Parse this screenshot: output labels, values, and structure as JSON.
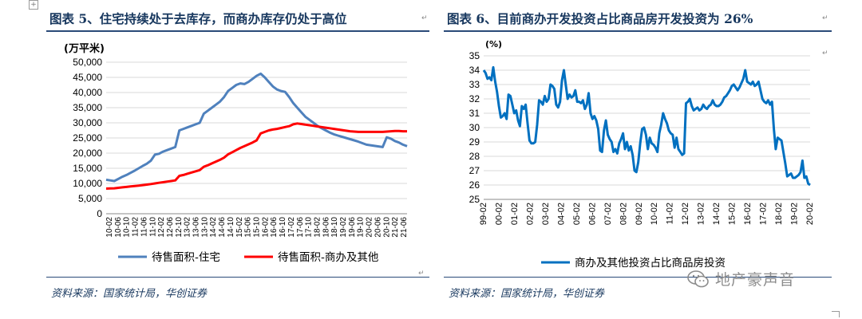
{
  "left": {
    "title": "图表 5、住宅持续处于去库存，而商办库存仍处于高位",
    "source": "资料来源：国家统计局，华创证券",
    "chart_data": {
      "type": "line",
      "ylabel": "(万平米)",
      "ylim": [
        0,
        50000
      ],
      "yticks": [
        "0",
        "5,000",
        "10,000",
        "15,000",
        "20,000",
        "25,000",
        "30,000",
        "35,000",
        "40,000",
        "45,000",
        "50,000"
      ],
      "x_tick_labels": [
        "10-02",
        "10-06",
        "10-10",
        "11-02",
        "11-06",
        "11-10",
        "12-02",
        "12-06",
        "12-10",
        "13-02",
        "13-06",
        "13-10",
        "14-02",
        "14-06",
        "14-10",
        "15-02",
        "15-06",
        "15-10",
        "16-02",
        "16-06",
        "16-10",
        "17-02",
        "17-06",
        "17-10",
        "18-02",
        "18-06",
        "18-10",
        "19-02",
        "19-06",
        "19-10",
        "20-02",
        "20-06",
        "20-10",
        "21-02",
        "21-06"
      ],
      "series": [
        {
          "name": "待售面积-住宅",
          "color": "#4f81bd",
          "values": [
            11200,
            11000,
            10800,
            11500,
            12200,
            12800,
            13500,
            14200,
            15000,
            15800,
            16500,
            17500,
            19500,
            19800,
            20500,
            21000,
            21500,
            22000,
            27500,
            28000,
            28500,
            29000,
            29500,
            30000,
            33000,
            34000,
            35000,
            36000,
            37000,
            38500,
            40500,
            41500,
            42500,
            43000,
            42800,
            43500,
            44500,
            45500,
            46200,
            45000,
            43500,
            42000,
            41000,
            40500,
            40200,
            38500,
            36500,
            35000,
            33500,
            32000,
            31000,
            30000,
            29000,
            28200,
            27500,
            26800,
            26200,
            25800,
            25400,
            25000,
            24600,
            24200,
            23800,
            23300,
            22800,
            22600,
            22400,
            22200,
            22000,
            25200,
            24800,
            24000,
            23500,
            22800,
            22300
          ]
        },
        {
          "name": "待售面积-商办及其他",
          "color": "#ff0000",
          "values": [
            8300,
            8350,
            8400,
            8550,
            8700,
            8850,
            9000,
            9150,
            9300,
            9450,
            9600,
            9800,
            10000,
            10200,
            10400,
            10600,
            10800,
            11000,
            12500,
            12800,
            13200,
            13600,
            14000,
            14400,
            15500,
            16000,
            16600,
            17200,
            17800,
            18500,
            19600,
            20300,
            21000,
            21700,
            22300,
            22900,
            23500,
            24200,
            26500,
            27000,
            27500,
            27800,
            28000,
            28300,
            28600,
            28900,
            29500,
            29800,
            29600,
            29400,
            29200,
            29000,
            28800,
            28600,
            28400,
            28200,
            28000,
            27800,
            27600,
            27400,
            27200,
            27100,
            27000,
            27000,
            27000,
            27000,
            27000,
            27000,
            27000,
            27100,
            27200,
            27300,
            27300,
            27200,
            27200
          ]
        }
      ]
    }
  },
  "right": {
    "title": "图表 6、目前商办开发投资占比商品房开发投资为 26%",
    "source": "资料来源：国家统计局，华创证券",
    "chart_data": {
      "type": "line",
      "ylabel": "(%)",
      "ylim": [
        25,
        35
      ],
      "yticks": [
        "25",
        "26",
        "27",
        "28",
        "29",
        "30",
        "31",
        "32",
        "33",
        "34",
        "35"
      ],
      "x_tick_labels": [
        "99-02",
        "00-02",
        "01-02",
        "02-02",
        "03-02",
        "04-02",
        "05-02",
        "06-02",
        "07-02",
        "08-02",
        "09-02",
        "10-02",
        "11-02",
        "12-02",
        "13-02",
        "14-02",
        "15-02",
        "16-02",
        "17-02",
        "18-02",
        "19-02",
        "20-02"
      ],
      "series": [
        {
          "name": "商办及其他投资占比商品房投资",
          "color": "#0070c0",
          "values": [
            34.0,
            33.8,
            33.4,
            33.5,
            33.3,
            34.2,
            33.2,
            32.5,
            31.5,
            30.7,
            30.8,
            31.0,
            30.6,
            32.3,
            32.2,
            31.6,
            31.0,
            31.2,
            30.5,
            30.1,
            31.5,
            31.3,
            31.6,
            30.3,
            29.1,
            28.9,
            28.9,
            29.0,
            30.2,
            31.9,
            31.8,
            31.6,
            32.2,
            31.8,
            32.0,
            33.0,
            32.9,
            32.7,
            31.6,
            31.4,
            31.8,
            33.3,
            34.0,
            33.0,
            32.0,
            32.3,
            32.1,
            32.2,
            32.6,
            31.8,
            31.8,
            31.7,
            31.9,
            31.3,
            31.6,
            32.4,
            31.0,
            30.6,
            30.8,
            30.5,
            29.9,
            28.4,
            28.3,
            29.8,
            30.5,
            29.5,
            29.2,
            29.0,
            28.3,
            28.5,
            28.2,
            28.9,
            29.2,
            29.6,
            28.5,
            29.0,
            28.4,
            28.7,
            28.1,
            27.0,
            26.9,
            27.6,
            28.9,
            29.9,
            30.0,
            29.5,
            28.5,
            29.3,
            28.9,
            28.8,
            28.6,
            28.3,
            29.6,
            30.2,
            31.0,
            30.6,
            30.3,
            29.8,
            29.6,
            29.5,
            28.6,
            29.3,
            28.5,
            28.3,
            28.1,
            28.2,
            31.7,
            31.8,
            32.0,
            31.5,
            31.2,
            31.3,
            31.4,
            31.2,
            31.3,
            31.6,
            31.4,
            31.3,
            31.5,
            31.6,
            31.9,
            31.6,
            31.5,
            31.5,
            31.6,
            31.8,
            32.1,
            32.2,
            32.4,
            32.6,
            32.9,
            33.0,
            32.8,
            32.6,
            32.8,
            33.1,
            33.4,
            34.0,
            33.2,
            33.1,
            33.0,
            33.2,
            32.9,
            33.0,
            33.2,
            32.6,
            32.0,
            31.8,
            31.7,
            31.9,
            31.6,
            31.8,
            29.9,
            28.5,
            29.3,
            29.2,
            29.1,
            28.3,
            27.5,
            26.6,
            26.7,
            26.8,
            26.5,
            26.5,
            26.6,
            26.7,
            26.9,
            27.7,
            26.5,
            26.6,
            26.1,
            26.0
          ]
        }
      ]
    }
  },
  "watermark": {
    "text": "地产豪声音"
  }
}
